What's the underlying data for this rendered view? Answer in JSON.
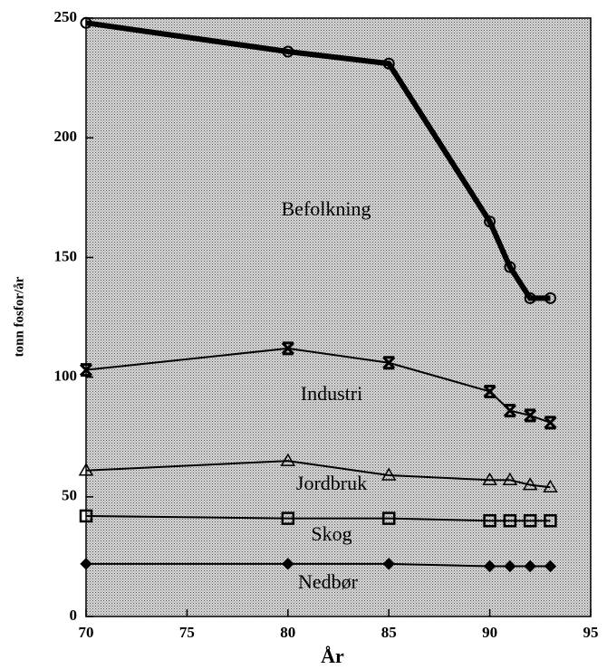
{
  "chart_data": {
    "type": "stacked_line",
    "xlabel": "År",
    "ylabel": "tonn fosfor/år",
    "x": [
      70,
      80,
      85,
      90,
      91,
      92,
      93
    ],
    "xlim": [
      70,
      95
    ],
    "xticks": [
      70,
      75,
      80,
      85,
      90,
      95
    ],
    "ylim": [
      0,
      250
    ],
    "yticks": [
      0,
      50,
      100,
      150,
      200,
      250
    ],
    "color": "#000000",
    "series": [
      {
        "name": "Nedbør",
        "marker": "diamond",
        "values": [
          22,
          22,
          22,
          21,
          21,
          21,
          21
        ]
      },
      {
        "name": "Skog",
        "marker": "square",
        "values": [
          20,
          19,
          19,
          19,
          19,
          19,
          19
        ]
      },
      {
        "name": "Jordbruk",
        "marker": "triangle",
        "values": [
          19,
          24,
          18,
          17,
          17,
          15,
          14
        ]
      },
      {
        "name": "Industri",
        "marker": "star",
        "values": [
          42,
          47,
          47,
          37,
          29,
          29,
          27
        ]
      },
      {
        "name": "Befolkning",
        "marker": "circle",
        "values": [
          145,
          124,
          125,
          71,
          60,
          49,
          52
        ]
      }
    ]
  }
}
